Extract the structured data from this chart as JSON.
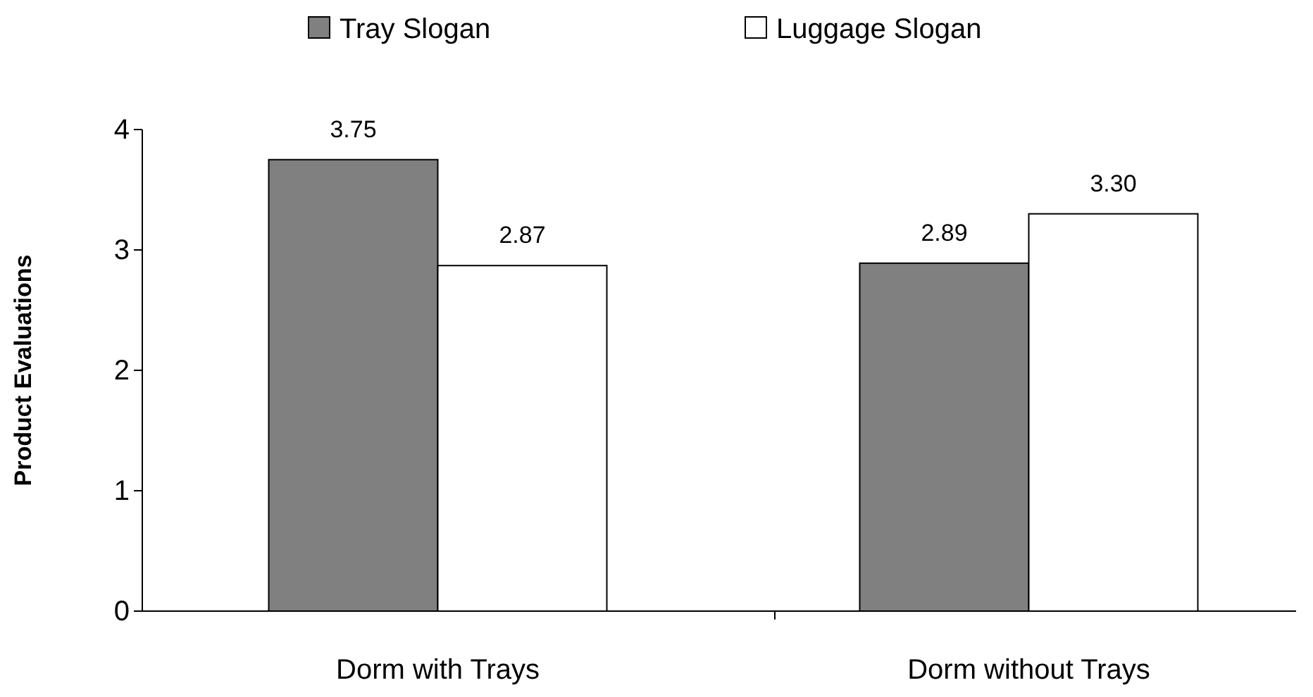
{
  "chart_data": {
    "type": "bar",
    "ylabel": "Product Evaluations",
    "categories": [
      "Dorm with Trays",
      "Dorm without Trays"
    ],
    "series": [
      {
        "name": "Tray Slogan",
        "color": "#808080",
        "values": [
          3.75,
          2.89
        ],
        "value_labels": [
          "3.75",
          "2.89"
        ]
      },
      {
        "name": "Luggage Slogan",
        "color": "#ffffff",
        "values": [
          2.87,
          3.3
        ],
        "value_labels": [
          "2.87",
          "3.30"
        ]
      }
    ],
    "ylim": [
      0,
      4
    ],
    "yticks": [
      0,
      1,
      2,
      3,
      4
    ],
    "grid": false,
    "legend": "top"
  }
}
